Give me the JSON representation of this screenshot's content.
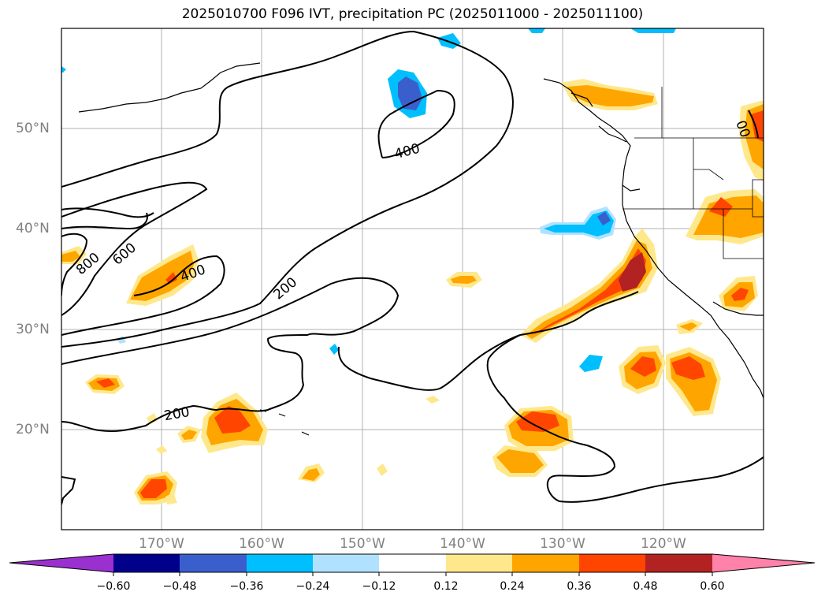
{
  "title": "2025010700 F096 IVT, precipitation PC (2025011000 - 2025011100)",
  "lat_labels": [
    "50°N",
    "40°N",
    "30°N",
    "20°N"
  ],
  "lon_labels": [
    "170°W",
    "160°W",
    "150°W",
    "140°W",
    "130°W",
    "120°W"
  ],
  "contour_labels": [
    "800",
    "600",
    "400",
    "400",
    "200",
    "200",
    "00"
  ],
  "colorbar": {
    "ticks": [
      "−0.60",
      "−0.48",
      "−0.36",
      "−0.24",
      "−0.12",
      "0.12",
      "0.24",
      "0.36",
      "0.48",
      "0.60"
    ],
    "colors": {
      "under": "#9b30d0",
      "neg_060_048": "#00008b",
      "neg_048_036": "#3a5fcd",
      "neg_036_024": "#00bfff",
      "neg_024_012": "#b0e2ff",
      "neutral": "#ffffff",
      "pos_012_024": "#ffe88c",
      "pos_024_036": "#ffa500",
      "pos_036_048": "#ff4500",
      "pos_048_060": "#b22222",
      "over": "#ff82ab"
    }
  }
}
